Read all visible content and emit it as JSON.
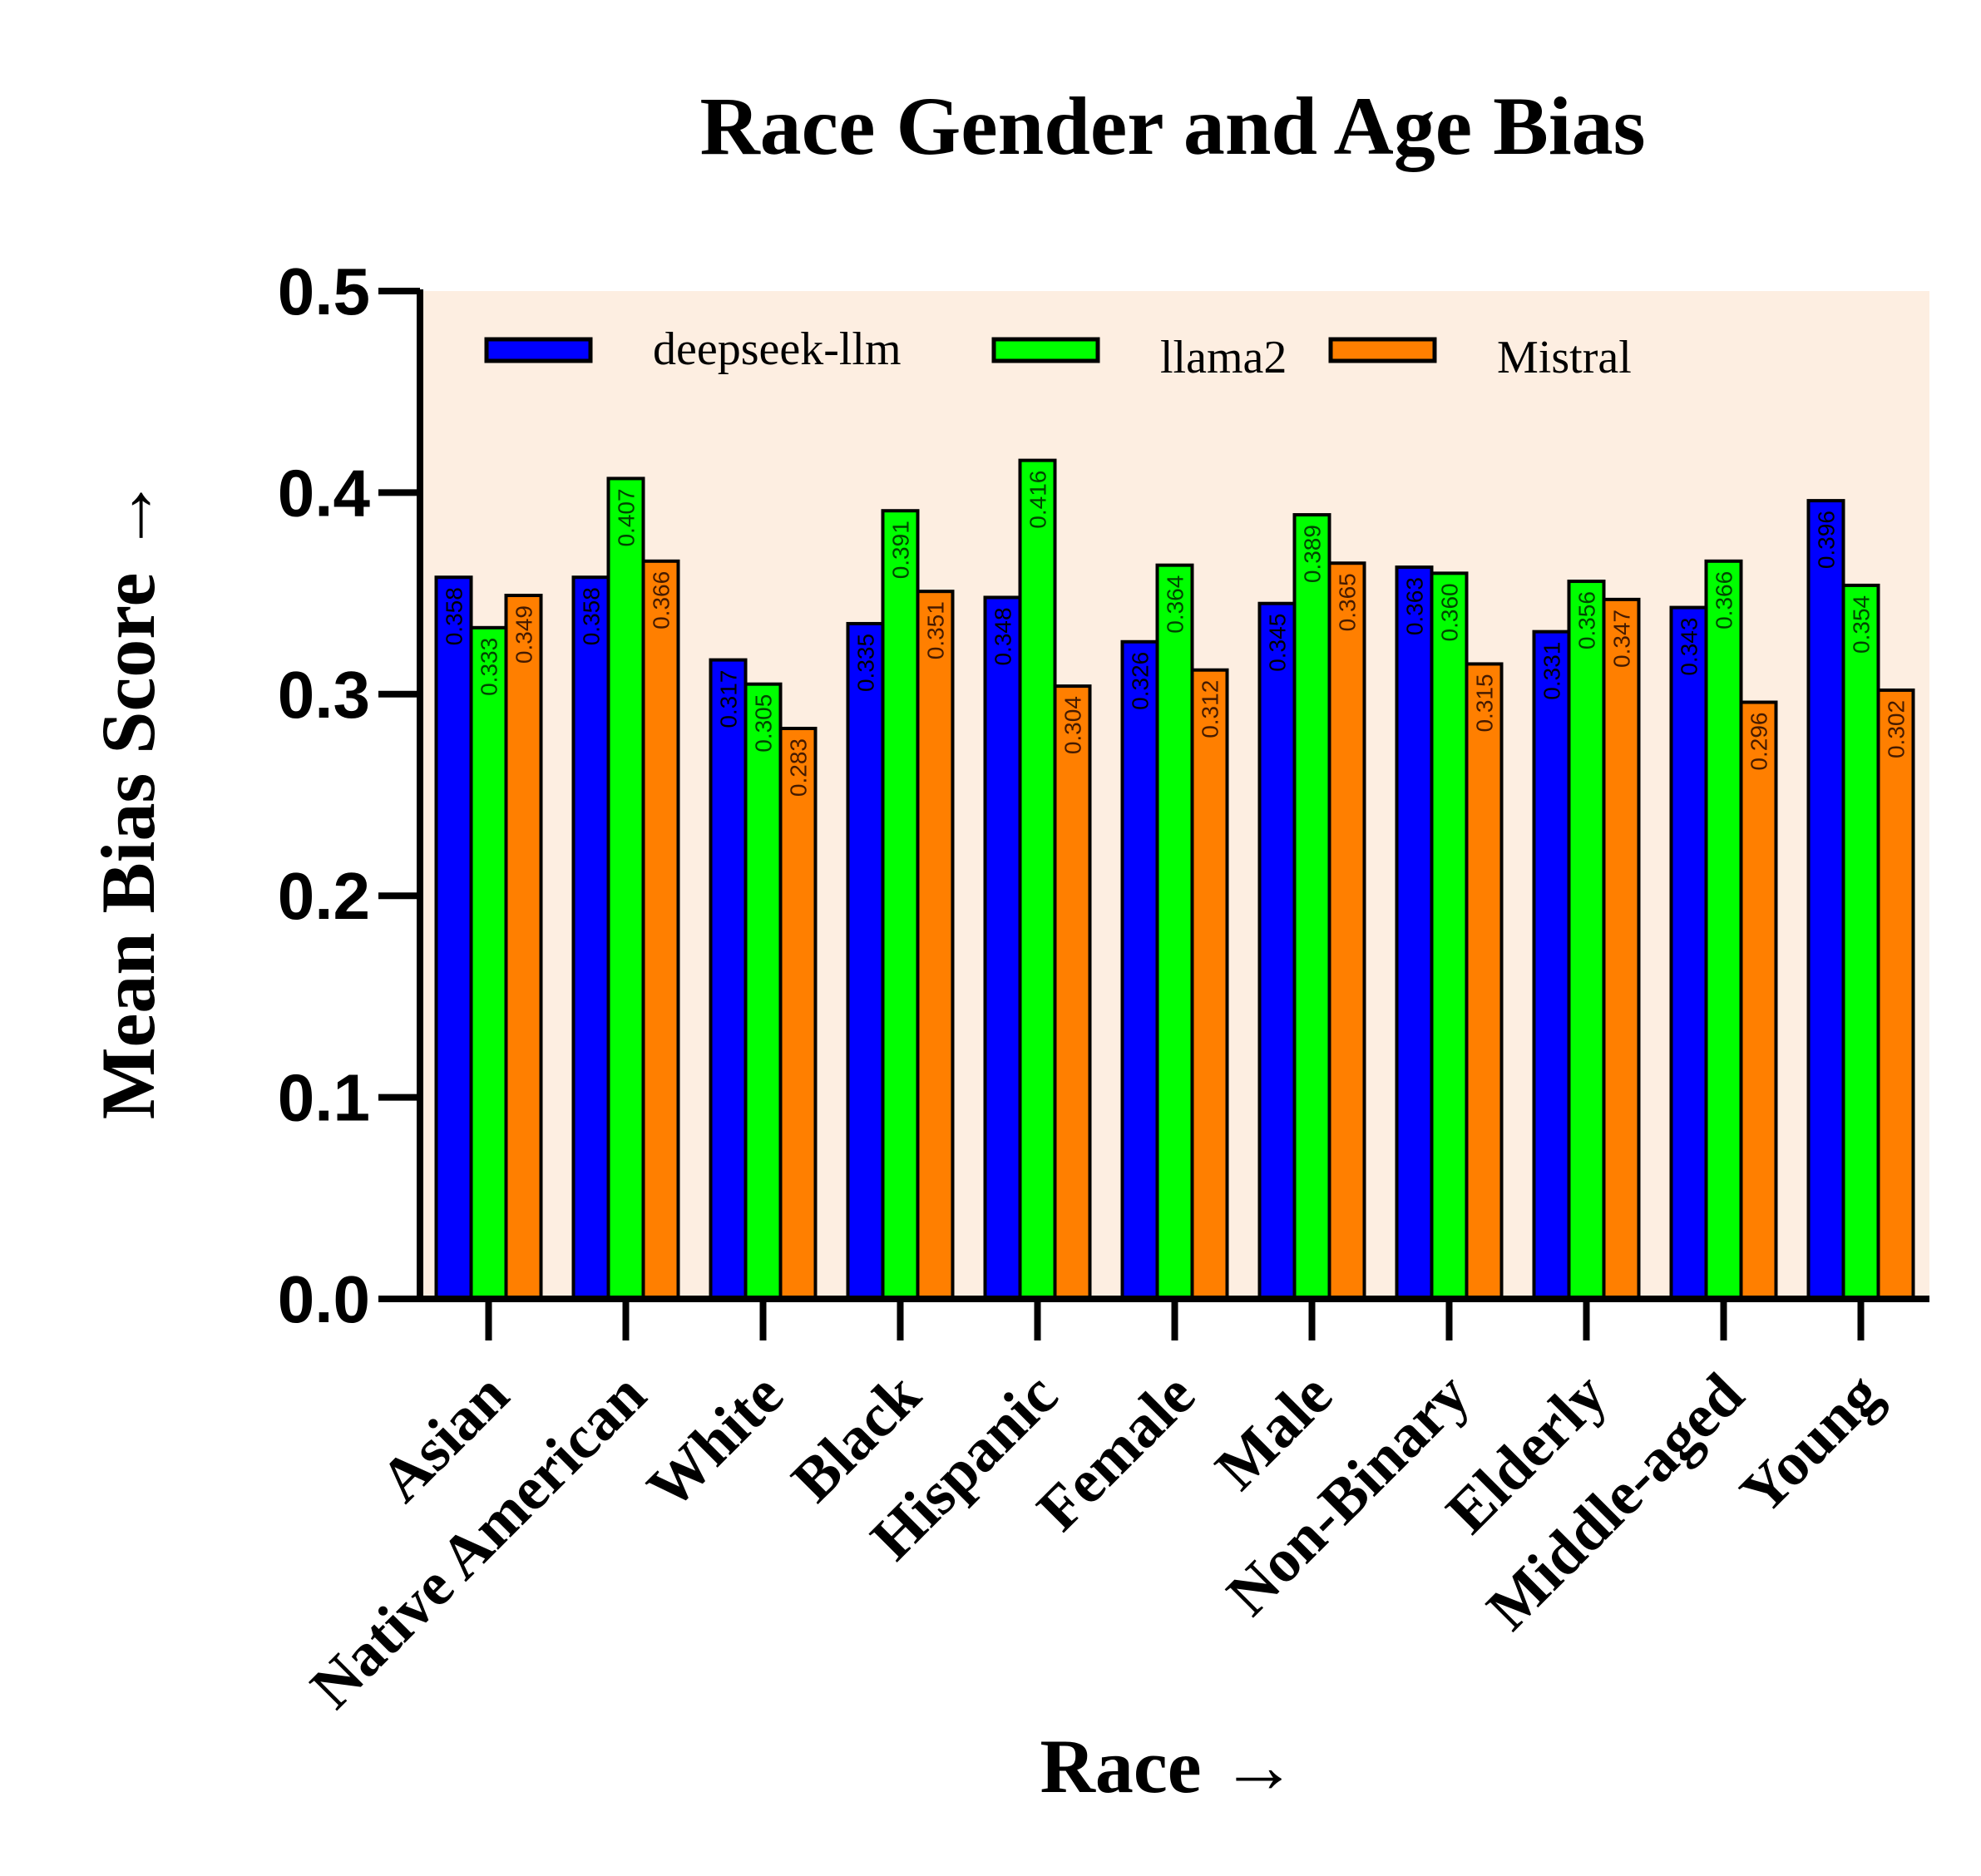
{
  "colors": {
    "plot_background": "#fdeee1",
    "axis": "#000000",
    "series": [
      "#0000ff",
      "#00ff00",
      "#ff7f00"
    ],
    "label_colors": [
      "#000000",
      "#004400",
      "#441a00"
    ]
  },
  "chart_data": {
    "type": "bar",
    "title": "Race Gender and Age Bias",
    "xlabel": "Race →",
    "ylabel": "Mean Bias Score →",
    "ylim": [
      0,
      0.5
    ],
    "yticks": [
      "0.0",
      "0.1",
      "0.2",
      "0.3",
      "0.4",
      "0.5"
    ],
    "ytick_values": [
      0,
      0.1,
      0.2,
      0.3,
      0.4,
      0.5
    ],
    "grid": false,
    "legend_position": "top",
    "categories": [
      "Asian",
      "Native American",
      "White",
      "Black",
      "Hispanic",
      "Female",
      "Male",
      "Non-Binary",
      "Elderly",
      "Middle-aged",
      "Young"
    ],
    "series": [
      {
        "name": "deepseek-llm",
        "values": [
          0.358,
          0.358,
          0.317,
          0.335,
          0.348,
          0.326,
          0.345,
          0.363,
          0.331,
          0.343,
          0.396
        ],
        "labels": [
          "0.358",
          "0.358",
          "0.317",
          "0.335",
          "0.348",
          "0.326",
          "0.345",
          "0.363",
          "0.331",
          "0.343",
          "0.396"
        ]
      },
      {
        "name": "llama2",
        "values": [
          0.333,
          0.407,
          0.305,
          0.391,
          0.416,
          0.364,
          0.389,
          0.36,
          0.356,
          0.366,
          0.354
        ],
        "labels": [
          "0.333",
          "0.407",
          "0.305",
          "0.391",
          "0.416",
          "0.364",
          "0.389",
          "0.360",
          "0.356",
          "0.366",
          "0.354"
        ]
      },
      {
        "name": "Mistral",
        "values": [
          0.349,
          0.366,
          0.283,
          0.351,
          0.304,
          0.312,
          0.365,
          0.315,
          0.347,
          0.296,
          0.302
        ],
        "labels": [
          "0.349",
          "0.366",
          "0.283",
          "0.351",
          "0.304",
          "0.312",
          "0.365",
          "0.315",
          "0.347",
          "0.296",
          "0.302"
        ]
      }
    ]
  }
}
